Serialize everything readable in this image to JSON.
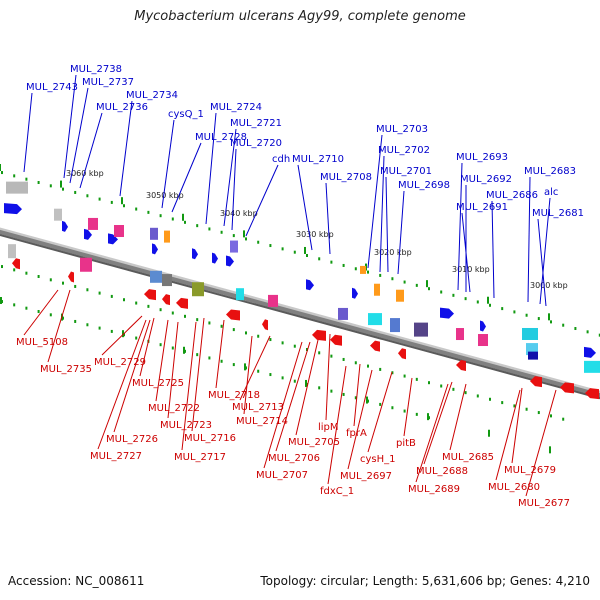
{
  "title": "Mycobacterium ulcerans Agy99, complete genome",
  "footer": {
    "accession": "Accession: NC_008611",
    "summary": "Topology: circular; Length: 5,631,606 bp; Genes: 4,210"
  },
  "colors": {
    "forward_label": "#0000cc",
    "reverse_label": "#cc0000",
    "forward_arrow": "#1010e8",
    "reverse_arrow": "#e81010",
    "backbone": "#808080",
    "tick": "#119911"
  },
  "scale_labels": [
    "3060 kbp",
    "3050 kbp",
    "3040 kbp",
    "3030 kbp",
    "3020 kbp",
    "3010 kbp",
    "3000 kbp"
  ],
  "forward_labels": [
    "MUL_2743",
    "MUL_2738",
    "MUL_2737",
    "MUL_2736",
    "MUL_2734",
    "cysQ_1",
    "MUL_2728",
    "MUL_2724",
    "MUL_2721",
    "MUL_2720",
    "cdh",
    "MUL_2710",
    "MUL_2708",
    "MUL_2703",
    "MUL_2702",
    "MUL_2701",
    "MUL_2698",
    "MUL_2693",
    "MUL_2692",
    "MUL_2691",
    "MUL_2686",
    "MUL_2683",
    "alc",
    "MUL_2681"
  ],
  "reverse_labels": [
    "MUL_5108",
    "MUL_2735",
    "MUL_2729",
    "MUL_2725",
    "MUL_2722",
    "MUL_2723",
    "MUL_2726",
    "MUL_2727",
    "MUL_2718",
    "MUL_2716",
    "MUL_2717",
    "MUL_2714",
    "MUL_2713",
    "lipM",
    "MUL_2705",
    "MUL_2706",
    "MUL_2707",
    "fdxC_1",
    "fprA",
    "MUL_2697",
    "cysH_1",
    "pitB",
    "MUL_2688",
    "MUL_2689",
    "MUL_2685",
    "MUL_2679",
    "MUL_2680",
    "MUL_2677"
  ]
}
